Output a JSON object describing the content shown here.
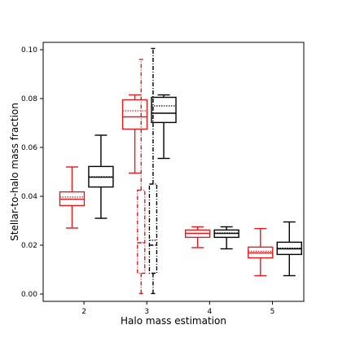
{
  "chart_data": {
    "type": "box",
    "title": "",
    "xlabel": "Halo mass estimation",
    "ylabel": "Stellar-to-halo mass fraction",
    "categories": [
      "2",
      "3",
      "4",
      "5"
    ],
    "x_ticks": [
      2,
      3,
      4,
      5
    ],
    "y_ticks": [
      0.0,
      0.02,
      0.04,
      0.06,
      0.08,
      0.1
    ],
    "y_tick_labels": [
      "0.00",
      "0.02",
      "0.04",
      "0.06",
      "0.08",
      "0.10"
    ],
    "x_tick_labels": [
      "2",
      "3",
      "4",
      "5"
    ],
    "ylim": [
      -0.003,
      0.103
    ],
    "xlim": [
      1.35,
      5.5
    ],
    "grid": false,
    "series": [
      {
        "color": "#e41a1c",
        "boxes": [
          {
            "x": 1.81,
            "whislo": 0.027,
            "q1": 0.0362,
            "med": 0.0388,
            "mean": 0.0397,
            "q3": 0.0418,
            "whishi": 0.052,
            "linestyle": "solid"
          },
          {
            "x": 2.81,
            "whislo": 0.0495,
            "q1": 0.0675,
            "med": 0.0725,
            "mean": 0.075,
            "q3": 0.0795,
            "whishi": 0.0815,
            "linestyle": "solid"
          },
          {
            "x": 2.91,
            "whislo": 0.0002,
            "q1": 0.0085,
            "med": 0.021,
            "mean": 0.021,
            "q3": 0.0425,
            "whishi": 0.096,
            "linestyle": "dashdot"
          },
          {
            "x": 3.81,
            "whislo": 0.019,
            "q1": 0.0232,
            "med": 0.0248,
            "mean": 0.0249,
            "q3": 0.0262,
            "whishi": 0.0275,
            "linestyle": "solid"
          },
          {
            "x": 4.81,
            "whislo": 0.0075,
            "q1": 0.0148,
            "med": 0.0168,
            "mean": 0.0175,
            "q3": 0.0192,
            "whishi": 0.0268,
            "linestyle": "solid"
          }
        ]
      },
      {
        "color": "#000000",
        "boxes": [
          {
            "x": 2.27,
            "whislo": 0.031,
            "q1": 0.0438,
            "med": 0.0478,
            "mean": 0.048,
            "q3": 0.0522,
            "whishi": 0.065,
            "linestyle": "solid"
          },
          {
            "x": 3.27,
            "whislo": 0.0555,
            "q1": 0.0702,
            "med": 0.074,
            "mean": 0.077,
            "q3": 0.0805,
            "whishi": 0.0815,
            "linestyle": "solid"
          },
          {
            "x": 3.1,
            "whislo": 0.0002,
            "q1": 0.0085,
            "med": 0.02,
            "mean": 0.022,
            "q3": 0.045,
            "whishi": 0.1005,
            "linestyle": "dashdot"
          },
          {
            "x": 4.27,
            "whislo": 0.0185,
            "q1": 0.0232,
            "med": 0.0248,
            "mean": 0.025,
            "q3": 0.0262,
            "whishi": 0.0275,
            "linestyle": "solid"
          },
          {
            "x": 5.27,
            "whislo": 0.0075,
            "q1": 0.0162,
            "med": 0.0185,
            "mean": 0.0188,
            "q3": 0.0212,
            "whishi": 0.0295,
            "linestyle": "solid"
          }
        ]
      }
    ]
  }
}
